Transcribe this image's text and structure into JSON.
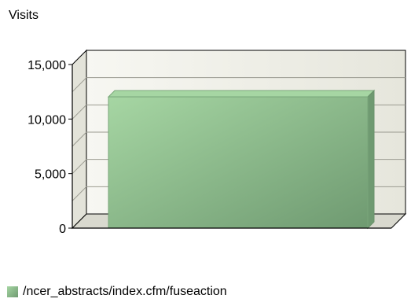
{
  "chart_data": {
    "type": "bar",
    "title": "",
    "ylabel": "Visits",
    "xlabel": "",
    "categories": [
      "/ncer_abstracts/index.cfm/fuseaction"
    ],
    "series": [
      {
        "name": "/ncer_abstracts/index.cfm/fuseaction",
        "values": [
          12900
        ]
      }
    ],
    "ylim": [
      0,
      15000
    ],
    "yticks": [
      0,
      5000,
      10000,
      15000
    ],
    "ytick_labels": [
      "0",
      "5,000",
      "10,000",
      "15,000"
    ],
    "grid": true,
    "legend": "bottom-left",
    "colors": {
      "bar": "#8fbf8f",
      "bar_light": "#a6d6a3",
      "bar_dark": "#6f9a71",
      "wall": "#efefe5",
      "floor": "#d9d9cf"
    }
  }
}
